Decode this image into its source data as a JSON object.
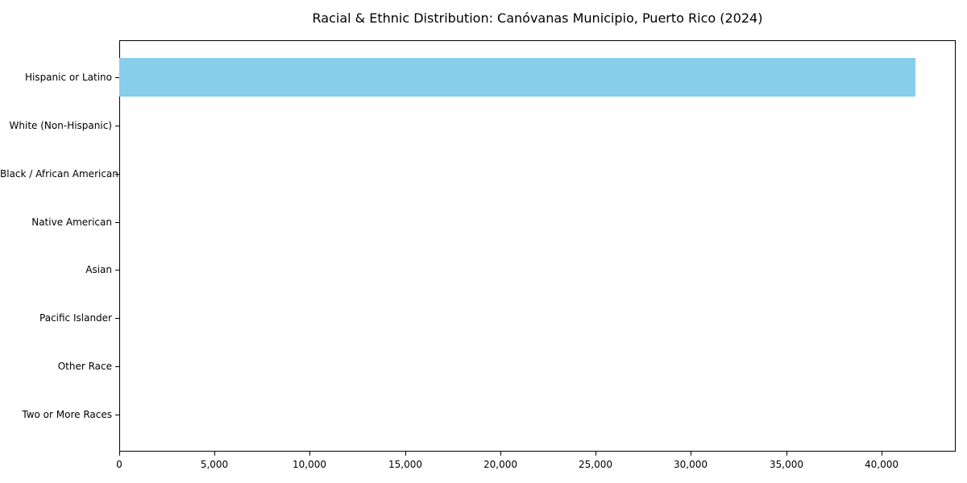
{
  "title": "Racial & Ethnic Distribution: Canóvanas Municipio, Puerto Rico (2024)",
  "chart_data": {
    "type": "bar",
    "orientation": "horizontal",
    "title": "Racial & Ethnic Distribution: Canóvanas Municipio, Puerto Rico (2024)",
    "xlabel": "",
    "ylabel": "",
    "categories": [
      "Hispanic or Latino",
      "White (Non-Hispanic)",
      "Black / African American",
      "Native American",
      "Asian",
      "Pacific Islander",
      "Other Race",
      "Two or More Races"
    ],
    "values": [
      41800,
      0,
      0,
      0,
      0,
      0,
      0,
      0
    ],
    "xlim": [
      0,
      43900
    ],
    "x_ticks": [
      0,
      5000,
      10000,
      15000,
      20000,
      25000,
      30000,
      35000,
      40000
    ],
    "x_tick_labels": [
      "0",
      "5,000",
      "10,000",
      "15,000",
      "20,000",
      "25,000",
      "30,000",
      "35,000",
      "40,000"
    ],
    "grid": false,
    "legend": "none",
    "bar_color": "#87CEEB",
    "axis_color": "#000000",
    "background_color": "#FFFFFF"
  }
}
